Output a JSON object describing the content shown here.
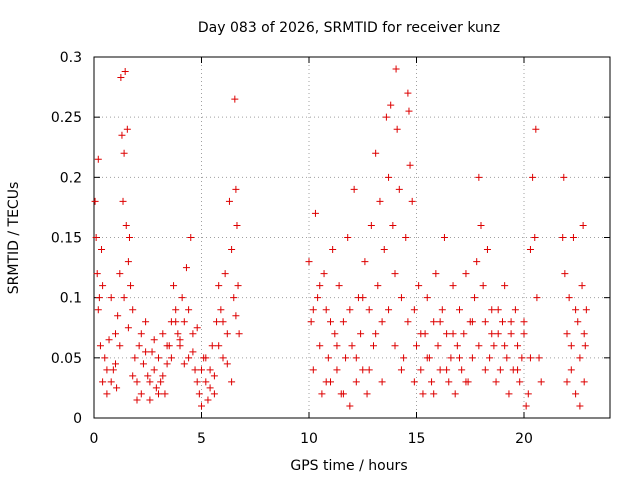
{
  "chart_data": {
    "type": "scatter",
    "title": "Day 083 of 2026, SRMTID for receiver kunz",
    "xlabel": "GPS time / hours",
    "ylabel": "SRMTID / TECUs",
    "xlim": [
      0,
      24
    ],
    "ylim": [
      0,
      0.3
    ],
    "xticks": [
      0,
      5,
      10,
      15,
      20
    ],
    "yticks": [
      0,
      0.05,
      0.1,
      0.15,
      0.2,
      0.25,
      0.3
    ],
    "xtick_labels": [
      "0",
      "5",
      "10",
      "15",
      "20"
    ],
    "ytick_labels": [
      "0",
      "0.05",
      "0.1",
      "0.15",
      "0.2",
      "0.25",
      "0.3"
    ],
    "grid": true,
    "marker": "+",
    "color": "#dd0000",
    "series": [
      {
        "name": "SRMTID",
        "points": [
          [
            0.05,
            0.18
          ],
          [
            0.1,
            0.15
          ],
          [
            0.15,
            0.12
          ],
          [
            0.2,
            0.215
          ],
          [
            0.25,
            0.1
          ],
          [
            0.3,
            0.06
          ],
          [
            0.35,
            0.14
          ],
          [
            0.4,
            0.03
          ],
          [
            0.5,
            0.05
          ],
          [
            0.6,
            0.02
          ],
          [
            0.7,
            0.065
          ],
          [
            0.8,
            0.1
          ],
          [
            0.9,
            0.04
          ],
          [
            1.0,
            0.07
          ],
          [
            1.05,
            0.025
          ],
          [
            1.1,
            0.085
          ],
          [
            1.2,
            0.12
          ],
          [
            1.25,
            0.283
          ],
          [
            1.3,
            0.235
          ],
          [
            1.35,
            0.18
          ],
          [
            1.4,
            0.22
          ],
          [
            1.45,
            0.288
          ],
          [
            1.5,
            0.16
          ],
          [
            1.55,
            0.24
          ],
          [
            1.6,
            0.13
          ],
          [
            1.65,
            0.15
          ],
          [
            1.7,
            0.11
          ],
          [
            1.8,
            0.09
          ],
          [
            1.9,
            0.05
          ],
          [
            2.0,
            0.03
          ],
          [
            2.1,
            0.06
          ],
          [
            2.2,
            0.02
          ],
          [
            2.3,
            0.045
          ],
          [
            2.4,
            0.08
          ],
          [
            2.5,
            0.035
          ],
          [
            2.6,
            0.015
          ],
          [
            2.7,
            0.055
          ],
          [
            2.8,
            0.04
          ],
          [
            2.9,
            0.025
          ],
          [
            3.0,
            0.05
          ],
          [
            3.1,
            0.03
          ],
          [
            3.2,
            0.07
          ],
          [
            3.3,
            0.02
          ],
          [
            3.4,
            0.045
          ],
          [
            3.5,
            0.06
          ],
          [
            3.6,
            0.08
          ],
          [
            3.7,
            0.11
          ],
          [
            3.8,
            0.09
          ],
          [
            3.9,
            0.07
          ],
          [
            4.0,
            0.06
          ],
          [
            4.1,
            0.1
          ],
          [
            4.2,
            0.08
          ],
          [
            4.3,
            0.125
          ],
          [
            4.4,
            0.05
          ],
          [
            4.5,
            0.15
          ],
          [
            4.6,
            0.07
          ],
          [
            4.7,
            0.04
          ],
          [
            4.8,
            0.03
          ],
          [
            4.9,
            0.02
          ],
          [
            5.0,
            0.01
          ],
          [
            5.1,
            0.05
          ],
          [
            5.2,
            0.03
          ],
          [
            5.3,
            0.015
          ],
          [
            5.4,
            0.04
          ],
          [
            5.5,
            0.06
          ],
          [
            5.6,
            0.02
          ],
          [
            5.7,
            0.08
          ],
          [
            5.8,
            0.11
          ],
          [
            5.9,
            0.09
          ],
          [
            6.0,
            0.05
          ],
          [
            6.1,
            0.12
          ],
          [
            6.2,
            0.07
          ],
          [
            6.3,
            0.18
          ],
          [
            6.4,
            0.14
          ],
          [
            6.5,
            0.1
          ],
          [
            6.55,
            0.265
          ],
          [
            6.6,
            0.19
          ],
          [
            6.65,
            0.16
          ],
          [
            6.7,
            0.11
          ],
          [
            6.75,
            0.07
          ],
          [
            0.2,
            0.09
          ],
          [
            0.4,
            0.11
          ],
          [
            0.6,
            0.04
          ],
          [
            0.8,
            0.03
          ],
          [
            1.0,
            0.045
          ],
          [
            1.2,
            0.06
          ],
          [
            1.4,
            0.1
          ],
          [
            1.6,
            0.075
          ],
          [
            1.8,
            0.035
          ],
          [
            2.0,
            0.015
          ],
          [
            2.2,
            0.07
          ],
          [
            2.4,
            0.055
          ],
          [
            2.6,
            0.03
          ],
          [
            2.8,
            0.065
          ],
          [
            3.0,
            0.02
          ],
          [
            3.2,
            0.035
          ],
          [
            3.4,
            0.06
          ],
          [
            3.6,
            0.05
          ],
          [
            3.8,
            0.08
          ],
          [
            4.0,
            0.065
          ],
          [
            4.2,
            0.045
          ],
          [
            4.4,
            0.09
          ],
          [
            4.6,
            0.055
          ],
          [
            4.8,
            0.075
          ],
          [
            5.0,
            0.04
          ],
          [
            5.2,
            0.05
          ],
          [
            5.4,
            0.025
          ],
          [
            5.6,
            0.035
          ],
          [
            5.8,
            0.06
          ],
          [
            6.0,
            0.08
          ],
          [
            6.2,
            0.045
          ],
          [
            6.4,
            0.03
          ],
          [
            6.6,
            0.085
          ],
          [
            10.0,
            0.13
          ],
          [
            10.1,
            0.08
          ],
          [
            10.2,
            0.04
          ],
          [
            10.3,
            0.17
          ],
          [
            10.4,
            0.1
          ],
          [
            10.5,
            0.06
          ],
          [
            10.6,
            0.02
          ],
          [
            10.7,
            0.12
          ],
          [
            10.8,
            0.09
          ],
          [
            10.9,
            0.05
          ],
          [
            11.0,
            0.03
          ],
          [
            11.1,
            0.14
          ],
          [
            11.2,
            0.07
          ],
          [
            11.3,
            0.04
          ],
          [
            11.4,
            0.11
          ],
          [
            11.5,
            0.02
          ],
          [
            11.6,
            0.08
          ],
          [
            11.7,
            0.05
          ],
          [
            11.8,
            0.15
          ],
          [
            11.9,
            0.01
          ],
          [
            12.0,
            0.06
          ],
          [
            12.1,
            0.19
          ],
          [
            12.2,
            0.03
          ],
          [
            12.3,
            0.1
          ],
          [
            12.4,
            0.07
          ],
          [
            12.5,
            0.04
          ],
          [
            12.6,
            0.13
          ],
          [
            12.7,
            0.02
          ],
          [
            12.8,
            0.09
          ],
          [
            12.9,
            0.16
          ],
          [
            13.0,
            0.06
          ],
          [
            13.1,
            0.22
          ],
          [
            13.2,
            0.11
          ],
          [
            13.3,
            0.18
          ],
          [
            13.4,
            0.08
          ],
          [
            13.5,
            0.14
          ],
          [
            13.6,
            0.25
          ],
          [
            13.7,
            0.2
          ],
          [
            13.8,
            0.26
          ],
          [
            13.9,
            0.16
          ],
          [
            14.0,
            0.12
          ],
          [
            14.05,
            0.29
          ],
          [
            14.1,
            0.24
          ],
          [
            14.2,
            0.19
          ],
          [
            14.3,
            0.1
          ],
          [
            14.4,
            0.05
          ],
          [
            14.5,
            0.15
          ],
          [
            14.6,
            0.27
          ],
          [
            14.65,
            0.255
          ],
          [
            14.7,
            0.21
          ],
          [
            14.8,
            0.18
          ],
          [
            14.9,
            0.09
          ],
          [
            15.0,
            0.06
          ],
          [
            15.1,
            0.11
          ],
          [
            15.2,
            0.04
          ],
          [
            15.3,
            0.02
          ],
          [
            15.4,
            0.07
          ],
          [
            15.5,
            0.1
          ],
          [
            15.6,
            0.05
          ],
          [
            15.7,
            0.03
          ],
          [
            15.8,
            0.08
          ],
          [
            15.9,
            0.12
          ],
          [
            16.0,
            0.06
          ],
          [
            16.1,
            0.04
          ],
          [
            16.2,
            0.09
          ],
          [
            16.3,
            0.15
          ],
          [
            16.4,
            0.07
          ],
          [
            16.5,
            0.03
          ],
          [
            16.6,
            0.05
          ],
          [
            16.7,
            0.11
          ],
          [
            16.8,
            0.02
          ],
          [
            16.9,
            0.06
          ],
          [
            17.0,
            0.09
          ],
          [
            17.1,
            0.04
          ],
          [
            17.2,
            0.07
          ],
          [
            17.3,
            0.12
          ],
          [
            17.4,
            0.03
          ],
          [
            17.5,
            0.08
          ],
          [
            17.6,
            0.05
          ],
          [
            17.7,
            0.1
          ],
          [
            17.8,
            0.13
          ],
          [
            17.9,
            0.2
          ],
          [
            18.0,
            0.16
          ],
          [
            18.1,
            0.11
          ],
          [
            18.2,
            0.08
          ],
          [
            18.3,
            0.14
          ],
          [
            18.4,
            0.05
          ],
          [
            18.5,
            0.09
          ],
          [
            18.6,
            0.06
          ],
          [
            18.7,
            0.03
          ],
          [
            18.8,
            0.07
          ],
          [
            18.9,
            0.04
          ],
          [
            19.0,
            0.08
          ],
          [
            19.1,
            0.11
          ],
          [
            19.2,
            0.05
          ],
          [
            19.3,
            0.02
          ],
          [
            19.4,
            0.07
          ],
          [
            19.5,
            0.04
          ],
          [
            19.6,
            0.09
          ],
          [
            19.7,
            0.06
          ],
          [
            19.8,
            0.03
          ],
          [
            19.9,
            0.05
          ],
          [
            20.0,
            0.08
          ],
          [
            20.1,
            0.01
          ],
          [
            20.2,
            0.02
          ],
          [
            20.3,
            0.14
          ],
          [
            20.4,
            0.2
          ],
          [
            20.5,
            0.15
          ],
          [
            20.55,
            0.24
          ],
          [
            20.6,
            0.1
          ],
          [
            20.7,
            0.05
          ],
          [
            20.8,
            0.03
          ],
          [
            10.2,
            0.09
          ],
          [
            10.5,
            0.11
          ],
          [
            10.8,
            0.03
          ],
          [
            11.0,
            0.08
          ],
          [
            11.3,
            0.06
          ],
          [
            11.6,
            0.02
          ],
          [
            11.9,
            0.09
          ],
          [
            12.2,
            0.05
          ],
          [
            12.5,
            0.1
          ],
          [
            12.8,
            0.04
          ],
          [
            13.1,
            0.07
          ],
          [
            13.4,
            0.03
          ],
          [
            13.7,
            0.09
          ],
          [
            14.0,
            0.06
          ],
          [
            14.3,
            0.04
          ],
          [
            14.6,
            0.08
          ],
          [
            14.9,
            0.03
          ],
          [
            15.2,
            0.07
          ],
          [
            15.5,
            0.05
          ],
          [
            15.8,
            0.02
          ],
          [
            16.1,
            0.08
          ],
          [
            16.4,
            0.04
          ],
          [
            16.7,
            0.07
          ],
          [
            17.0,
            0.05
          ],
          [
            17.3,
            0.03
          ],
          [
            17.6,
            0.08
          ],
          [
            17.9,
            0.06
          ],
          [
            18.2,
            0.04
          ],
          [
            18.5,
            0.07
          ],
          [
            18.8,
            0.09
          ],
          [
            19.1,
            0.06
          ],
          [
            19.4,
            0.08
          ],
          [
            19.7,
            0.04
          ],
          [
            20.0,
            0.07
          ],
          [
            20.3,
            0.05
          ],
          [
            21.8,
            0.15
          ],
          [
            21.85,
            0.2
          ],
          [
            21.9,
            0.12
          ],
          [
            22.0,
            0.07
          ],
          [
            22.1,
            0.1
          ],
          [
            22.2,
            0.04
          ],
          [
            22.3,
            0.15
          ],
          [
            22.4,
            0.02
          ],
          [
            22.5,
            0.08
          ],
          [
            22.6,
            0.05
          ],
          [
            22.7,
            0.11
          ],
          [
            22.75,
            0.16
          ],
          [
            22.8,
            0.03
          ],
          [
            22.85,
            0.06
          ],
          [
            22.9,
            0.09
          ],
          [
            22.0,
            0.03
          ],
          [
            22.2,
            0.06
          ],
          [
            22.4,
            0.09
          ],
          [
            22.6,
            0.01
          ],
          [
            22.8,
            0.07
          ]
        ]
      }
    ]
  }
}
